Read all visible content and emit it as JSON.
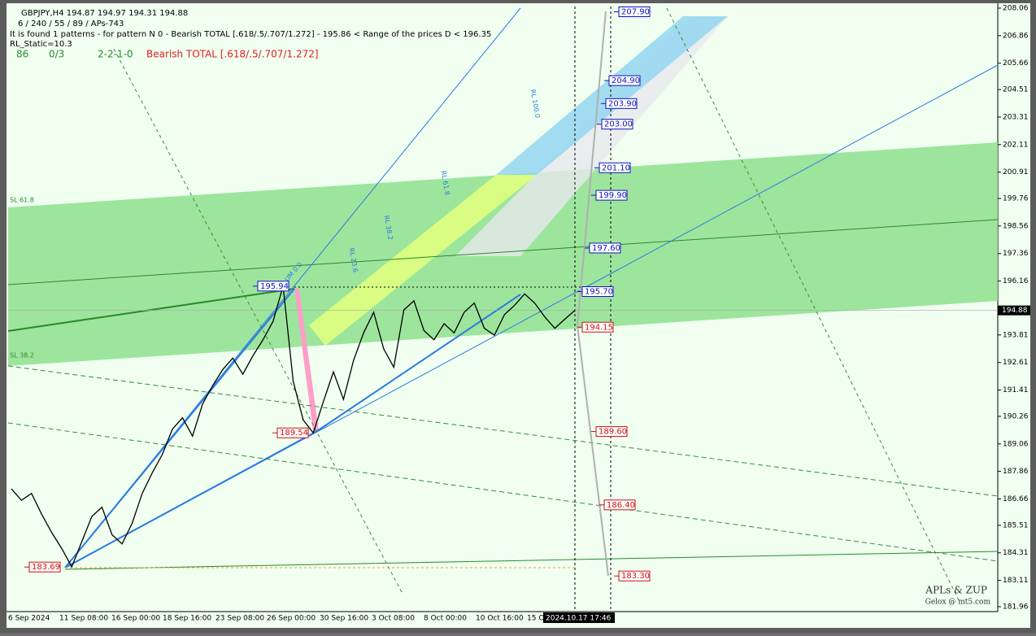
{
  "header": {
    "symbol_line": "GBPJPY,H4  194.87 194.97 194.31 194.88",
    "params": "6 / 240 / 55 / 89 / APs-743",
    "pattern_info": "It is found 1 patterns  -  for pattern N 0 - Bearish TOTAL [.618/.5/.707/1.272] - 195.86 < Range of the prices D < 196.35",
    "rl_static": "RL_Static=10.3",
    "count": "86",
    "ratio": "0/3",
    "sequence": "2-2-1-0",
    "pattern_name": "Bearish TOTAL [.618/.5/.707/1.272]"
  },
  "price_axis": {
    "ticks": [
      208.06,
      206.86,
      205.66,
      204.51,
      203.31,
      202.11,
      200.91,
      199.76,
      198.56,
      197.36,
      196.16,
      193.81,
      192.61,
      191.41,
      190.26,
      189.06,
      187.86,
      186.66,
      185.51,
      184.31,
      183.11,
      181.96
    ],
    "current": 194.88
  },
  "time_axis": {
    "labels": [
      "6 Sep 2024",
      "11 Sep 08:00",
      "16 Sep 00:00",
      "18 Sep 16:00",
      "23 Sep 08:00",
      "26 Sep 00:00",
      "30 Sep 16:00",
      "3 Oct 08:00",
      "8 Oct 00:00",
      "10 Oct 16:00",
      "15 O"
    ],
    "cursor": "2024.10.17 17:46"
  },
  "levels_up": [
    207.9,
    204.9,
    203.9,
    203.0,
    201.1,
    199.9,
    197.6,
    195.7
  ],
  "levels_up_labels": [
    "207.90",
    "204.90",
    "203.90",
    "203.00",
    "201.10",
    "199.90",
    "197.60",
    "195.70"
  ],
  "levels_down": [
    194.15,
    189.6,
    186.4,
    183.3
  ],
  "levels_down_labels": [
    "194.15",
    "189.60",
    "186.40",
    "183.30"
  ],
  "pivots": [
    195.94,
    189.54,
    183.69
  ],
  "pivot_labels": [
    "195.94",
    "189.54",
    "183.69"
  ],
  "zone_labels": [
    "SL 61.8",
    "SL 38.2",
    "RL 100.0",
    "RL 61.8",
    "RL 38.2",
    "RL 23.6",
    "UM 0.0"
  ],
  "price": {
    "close": [
      187.1,
      186.6,
      186.9,
      186.0,
      185.2,
      184.5,
      183.7,
      184.8,
      185.9,
      186.3,
      185.1,
      184.7,
      185.6,
      186.9,
      187.8,
      188.6,
      189.7,
      190.2,
      189.4,
      190.8,
      191.6,
      192.3,
      192.8,
      192.1,
      192.9,
      193.6,
      194.4,
      195.94,
      191.8,
      190.1,
      189.54,
      190.9,
      192.2,
      191.0,
      192.7,
      193.9,
      194.8,
      193.2,
      192.4,
      194.9,
      195.3,
      194.0,
      193.6,
      194.3,
      193.9,
      194.8,
      195.2,
      194.1,
      193.8,
      194.7,
      195.1,
      195.6,
      195.2,
      194.6,
      194.1,
      194.5,
      194.88
    ]
  },
  "watermark": {
    "title": "APLs & ZUP",
    "site": "Gelox @ mt5.com"
  }
}
